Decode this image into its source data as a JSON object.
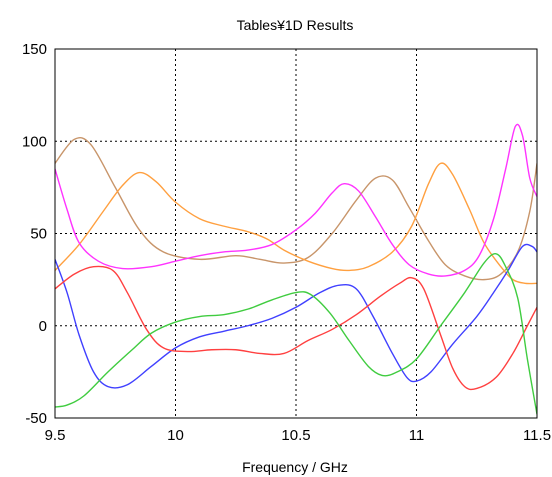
{
  "chart_data": {
    "type": "line",
    "title": "Tables¥1D Results",
    "xlabel": "Frequency / GHz",
    "ylabel": "",
    "xlim": [
      9.5,
      11.5
    ],
    "ylim": [
      -50,
      150
    ],
    "x_ticks": [
      "9.5",
      "10",
      "10.5",
      "11",
      "11.5"
    ],
    "y_ticks": [
      "150",
      "100",
      "50",
      "0",
      "-50"
    ],
    "grid": true,
    "legend": "none",
    "series": [
      {
        "color": "#c8956a",
        "points": [
          [
            9.5,
            88
          ],
          [
            9.58,
            101
          ],
          [
            9.65,
            98
          ],
          [
            9.75,
            75
          ],
          [
            9.85,
            52
          ],
          [
            9.95,
            40
          ],
          [
            10.1,
            36
          ],
          [
            10.25,
            38
          ],
          [
            10.35,
            36
          ],
          [
            10.45,
            34
          ],
          [
            10.55,
            37
          ],
          [
            10.65,
            50
          ],
          [
            10.75,
            68
          ],
          [
            10.83,
            80
          ],
          [
            10.9,
            79
          ],
          [
            10.97,
            64
          ],
          [
            11.05,
            46
          ],
          [
            11.12,
            33
          ],
          [
            11.2,
            27
          ],
          [
            11.28,
            25
          ],
          [
            11.35,
            28
          ],
          [
            11.42,
            40
          ],
          [
            11.47,
            62
          ],
          [
            11.5,
            88
          ]
        ]
      },
      {
        "color": "#ffa040",
        "points": [
          [
            9.5,
            30
          ],
          [
            9.6,
            44
          ],
          [
            9.7,
            62
          ],
          [
            9.78,
            76
          ],
          [
            9.85,
            83
          ],
          [
            9.92,
            78
          ],
          [
            10.0,
            67
          ],
          [
            10.1,
            58
          ],
          [
            10.2,
            54
          ],
          [
            10.3,
            51
          ],
          [
            10.38,
            47
          ],
          [
            10.45,
            41
          ],
          [
            10.55,
            35
          ],
          [
            10.65,
            31
          ],
          [
            10.72,
            30
          ],
          [
            10.8,
            32
          ],
          [
            10.9,
            40
          ],
          [
            10.98,
            54
          ],
          [
            11.05,
            77
          ],
          [
            11.1,
            88
          ],
          [
            11.15,
            82
          ],
          [
            11.22,
            63
          ],
          [
            11.28,
            45
          ],
          [
            11.35,
            32
          ],
          [
            11.4,
            25
          ],
          [
            11.45,
            23
          ],
          [
            11.5,
            23
          ]
        ]
      },
      {
        "color": "#ff33ff",
        "points": [
          [
            9.5,
            85
          ],
          [
            9.55,
            63
          ],
          [
            9.6,
            45
          ],
          [
            9.68,
            35
          ],
          [
            9.78,
            31
          ],
          [
            9.9,
            32
          ],
          [
            10.0,
            35
          ],
          [
            10.1,
            38
          ],
          [
            10.2,
            40
          ],
          [
            10.3,
            41
          ],
          [
            10.4,
            44
          ],
          [
            10.5,
            52
          ],
          [
            10.58,
            61
          ],
          [
            10.65,
            72
          ],
          [
            10.7,
            77
          ],
          [
            10.76,
            73
          ],
          [
            10.83,
            59
          ],
          [
            10.9,
            44
          ],
          [
            10.97,
            33
          ],
          [
            11.05,
            28
          ],
          [
            11.12,
            27
          ],
          [
            11.2,
            30
          ],
          [
            11.26,
            38
          ],
          [
            11.32,
            58
          ],
          [
            11.37,
            85
          ],
          [
            11.41,
            108
          ],
          [
            11.44,
            103
          ],
          [
            11.47,
            80
          ],
          [
            11.5,
            70
          ]
        ]
      },
      {
        "color": "#4040ff",
        "points": [
          [
            9.5,
            36
          ],
          [
            9.55,
            18
          ],
          [
            9.6,
            -5
          ],
          [
            9.66,
            -25
          ],
          [
            9.72,
            -33
          ],
          [
            9.8,
            -32
          ],
          [
            9.9,
            -22
          ],
          [
            10.0,
            -12
          ],
          [
            10.1,
            -6
          ],
          [
            10.2,
            -3
          ],
          [
            10.3,
            0
          ],
          [
            10.4,
            4
          ],
          [
            10.5,
            10
          ],
          [
            10.6,
            18
          ],
          [
            10.68,
            22
          ],
          [
            10.75,
            20
          ],
          [
            10.82,
            5
          ],
          [
            10.9,
            -15
          ],
          [
            10.96,
            -28
          ],
          [
            11.0,
            -30
          ],
          [
            11.06,
            -25
          ],
          [
            11.15,
            -10
          ],
          [
            11.25,
            5
          ],
          [
            11.32,
            18
          ],
          [
            11.38,
            30
          ],
          [
            11.44,
            43
          ],
          [
            11.48,
            43
          ],
          [
            11.5,
            40
          ]
        ]
      },
      {
        "color": "#ff4040",
        "points": [
          [
            9.5,
            20
          ],
          [
            9.58,
            28
          ],
          [
            9.66,
            32
          ],
          [
            9.74,
            30
          ],
          [
            9.8,
            18
          ],
          [
            9.88,
            -2
          ],
          [
            9.95,
            -12
          ],
          [
            10.05,
            -14
          ],
          [
            10.15,
            -13
          ],
          [
            10.25,
            -13
          ],
          [
            10.35,
            -15
          ],
          [
            10.45,
            -15
          ],
          [
            10.55,
            -8
          ],
          [
            10.65,
            -2
          ],
          [
            10.75,
            6
          ],
          [
            10.85,
            16
          ],
          [
            10.93,
            23
          ],
          [
            10.98,
            26
          ],
          [
            11.03,
            20
          ],
          [
            11.1,
            -5
          ],
          [
            11.15,
            -23
          ],
          [
            11.2,
            -33
          ],
          [
            11.25,
            -34
          ],
          [
            11.33,
            -28
          ],
          [
            11.4,
            -15
          ],
          [
            11.46,
            0
          ],
          [
            11.5,
            10
          ]
        ]
      },
      {
        "color": "#40cc40",
        "points": [
          [
            9.5,
            -44
          ],
          [
            9.55,
            -43
          ],
          [
            9.62,
            -38
          ],
          [
            9.72,
            -25
          ],
          [
            9.82,
            -13
          ],
          [
            9.9,
            -4
          ],
          [
            10.0,
            2
          ],
          [
            10.1,
            5
          ],
          [
            10.2,
            6
          ],
          [
            10.3,
            9
          ],
          [
            10.4,
            14
          ],
          [
            10.5,
            18
          ],
          [
            10.56,
            17
          ],
          [
            10.64,
            7
          ],
          [
            10.72,
            -8
          ],
          [
            10.8,
            -22
          ],
          [
            10.86,
            -27
          ],
          [
            10.92,
            -25
          ],
          [
            11.0,
            -18
          ],
          [
            11.1,
            0
          ],
          [
            11.2,
            18
          ],
          [
            11.28,
            34
          ],
          [
            11.33,
            39
          ],
          [
            11.37,
            32
          ],
          [
            11.42,
            15
          ],
          [
            11.46,
            -18
          ],
          [
            11.5,
            -48
          ]
        ]
      }
    ]
  }
}
